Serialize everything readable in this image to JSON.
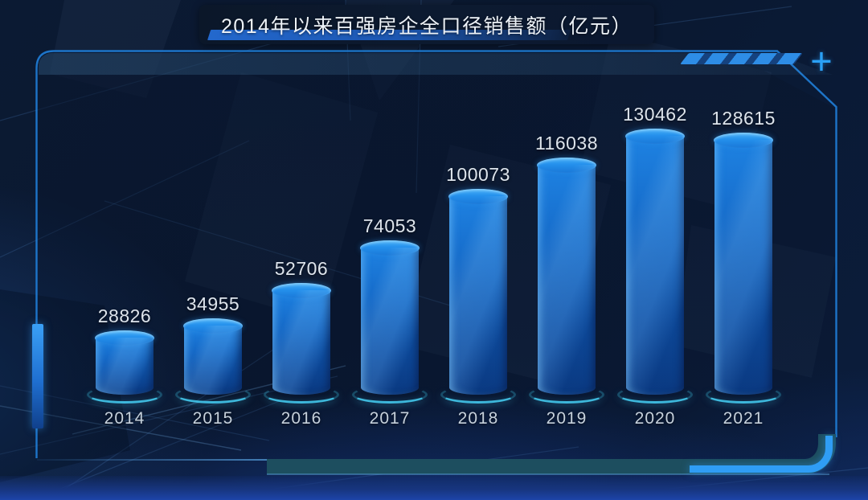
{
  "title_bar": {
    "title": "2014年以来百强房企全口径销售额（亿元）"
  },
  "frame": {
    "plus_icon": "+"
  },
  "chart_data": {
    "type": "bar",
    "subtype": "3d-cylinder",
    "title": "2014年以来百强房企全口径销售额（亿元）",
    "categories": [
      "2014",
      "2015",
      "2016",
      "2017",
      "2018",
      "2019",
      "2020",
      "2021"
    ],
    "values": [
      28826,
      34955,
      52706,
      74053,
      100073,
      116038,
      130462,
      128615
    ],
    "value_labels_shown": true,
    "xlabel": "",
    "ylabel": "",
    "ylim": [
      0,
      140000
    ],
    "grid": false,
    "legend": "none"
  },
  "colors": {
    "background": "#0a1830",
    "frame_border": "#1f7ed8",
    "bar_top_rim": "#4ab1f8",
    "bar_body_top": "#1e82e2",
    "bar_body_bottom": "#0c3f8c",
    "base_glow": "#44c7ec",
    "value_text": "#dde4ec",
    "year_text": "#c6d1dc",
    "title_text": "#eef3f8",
    "title_underline": "#2368cd",
    "corner_stripe_blue": "#2e8de6",
    "bottom_band_teal": "#1d4e5f",
    "bottom_corner_blue": "#2f9df5",
    "plus_accent": "#2aa0f5"
  }
}
